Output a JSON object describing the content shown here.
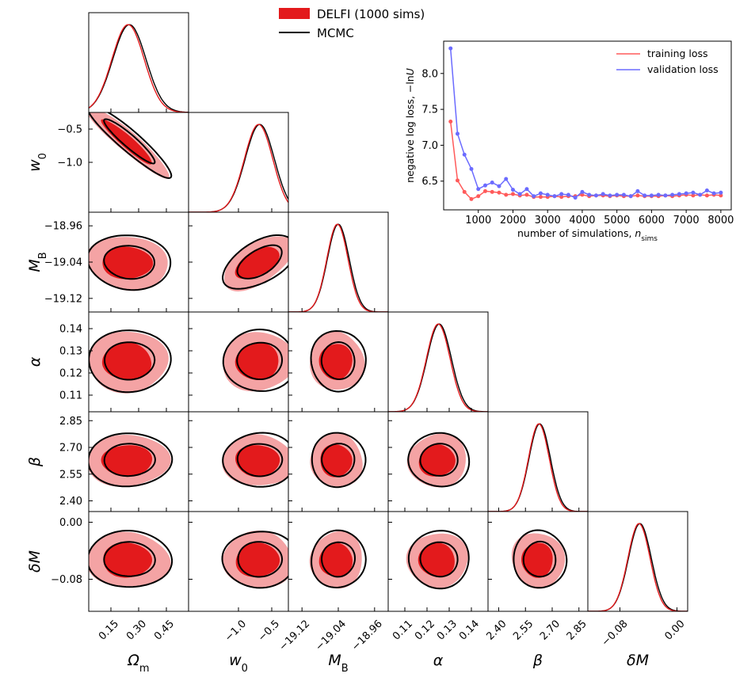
{
  "chart_data": {
    "type": "corner",
    "title": "",
    "parameters": [
      {
        "key": "om",
        "label": "Ω",
        "sub": "m",
        "ticks": [
          0.15,
          0.3,
          0.45
        ],
        "tick_labels": [
          "0.15",
          "0.30",
          "0.45"
        ],
        "range": [
          0.03,
          0.57
        ],
        "mean": 0.25,
        "sd": 0.09
      },
      {
        "key": "w0",
        "label": "w",
        "sub": "0",
        "ticks": [
          -1.0,
          -0.5
        ],
        "tick_labels": [
          "−1.0",
          "−0.5"
        ],
        "range": [
          -1.75,
          -0.25
        ],
        "mean": -0.68,
        "sd": 0.22
      },
      {
        "key": "mb",
        "label": "M",
        "sub": "B",
        "ticks": [
          -19.12,
          -19.04,
          -18.96
        ],
        "tick_labels": [
          "−19.12",
          "−19.04",
          "−18.96"
        ],
        "range": [
          -19.15,
          -18.93
        ],
        "mean": -19.04,
        "sd": 0.024
      },
      {
        "key": "alpha",
        "label": "α",
        "sub": "",
        "ticks": [
          0.11,
          0.12,
          0.13,
          0.14
        ],
        "tick_labels": [
          "0.11",
          "0.12",
          "0.13",
          "0.14"
        ],
        "range": [
          0.1025,
          0.1475
        ],
        "mean": 0.1255,
        "sd": 0.0055
      },
      {
        "key": "beta",
        "label": "β",
        "sub": "",
        "ticks": [
          2.4,
          2.55,
          2.7,
          2.85
        ],
        "tick_labels": [
          "2.40",
          "2.55",
          "2.70",
          "2.85"
        ],
        "range": [
          2.34,
          2.9
        ],
        "mean": 2.63,
        "sd": 0.06
      },
      {
        "key": "dm",
        "label": "δM",
        "sub": "",
        "ticks": [
          -0.08,
          0.0
        ],
        "tick_labels": [
          "−0.08",
          "0.00"
        ],
        "range": [
          -0.125,
          0.015
        ],
        "mean": -0.052,
        "sd": 0.016
      }
    ],
    "legend": [
      {
        "label": "DELFI (1000 sims)",
        "kind": "patch",
        "color": "#e31a1c"
      },
      {
        "label": "MCMC",
        "kind": "line",
        "color": "#000000"
      }
    ],
    "contour_levels": [
      "68%",
      "95%"
    ],
    "colors": {
      "delfi_inner": "#e31a1c",
      "delfi_outer": "#f4a3a4",
      "mcmc": "#000000",
      "training": "#ff5a5a",
      "validation": "#6b6bff"
    },
    "inset": {
      "type": "line",
      "xlabel": "number of simulations, ",
      "xlabel_math": "n",
      "xlabel_sub": "sims",
      "ylabel": "negative log loss, −ln",
      "ylabel_math": "U",
      "xlim": [
        0,
        8300
      ],
      "ylim": [
        6.1,
        8.45
      ],
      "xticks": [
        1000,
        2000,
        3000,
        4000,
        5000,
        6000,
        7000,
        8000
      ],
      "xtick_labels": [
        "1000",
        "2000",
        "3000",
        "4000",
        "5000",
        "6000",
        "7000",
        "8000"
      ],
      "yticks": [
        6.5,
        7.0,
        7.5,
        8.0
      ],
      "ytick_labels": [
        "6.5",
        "7.0",
        "7.5",
        "8.0"
      ],
      "x": [
        200,
        400,
        600,
        800,
        1000,
        1200,
        1400,
        1600,
        1800,
        2000,
        2200,
        2400,
        2600,
        2800,
        3000,
        3200,
        3400,
        3600,
        3800,
        4000,
        4200,
        4400,
        4600,
        4800,
        5000,
        5200,
        5400,
        5600,
        5800,
        6000,
        6200,
        6400,
        6600,
        6800,
        7000,
        7200,
        7400,
        7600,
        7800,
        8000
      ],
      "series": [
        {
          "name": "training loss",
          "color": "#ff5a5a",
          "values": [
            7.33,
            6.51,
            6.35,
            6.25,
            6.29,
            6.36,
            6.35,
            6.34,
            6.31,
            6.32,
            6.3,
            6.31,
            6.28,
            6.28,
            6.28,
            6.29,
            6.28,
            6.29,
            6.29,
            6.31,
            6.29,
            6.3,
            6.3,
            6.29,
            6.3,
            6.29,
            6.29,
            6.3,
            6.29,
            6.29,
            6.29,
            6.3,
            6.29,
            6.3,
            6.31,
            6.3,
            6.31,
            6.3,
            6.31,
            6.3
          ]
        },
        {
          "name": "validation loss",
          "color": "#6b6bff",
          "values": [
            8.35,
            7.16,
            6.87,
            6.67,
            6.39,
            6.44,
            6.48,
            6.43,
            6.53,
            6.38,
            6.32,
            6.39,
            6.29,
            6.33,
            6.31,
            6.29,
            6.32,
            6.31,
            6.27,
            6.35,
            6.31,
            6.3,
            6.32,
            6.3,
            6.31,
            6.31,
            6.29,
            6.36,
            6.3,
            6.3,
            6.31,
            6.3,
            6.31,
            6.32,
            6.33,
            6.34,
            6.31,
            6.37,
            6.33,
            6.34
          ]
        }
      ]
    }
  }
}
